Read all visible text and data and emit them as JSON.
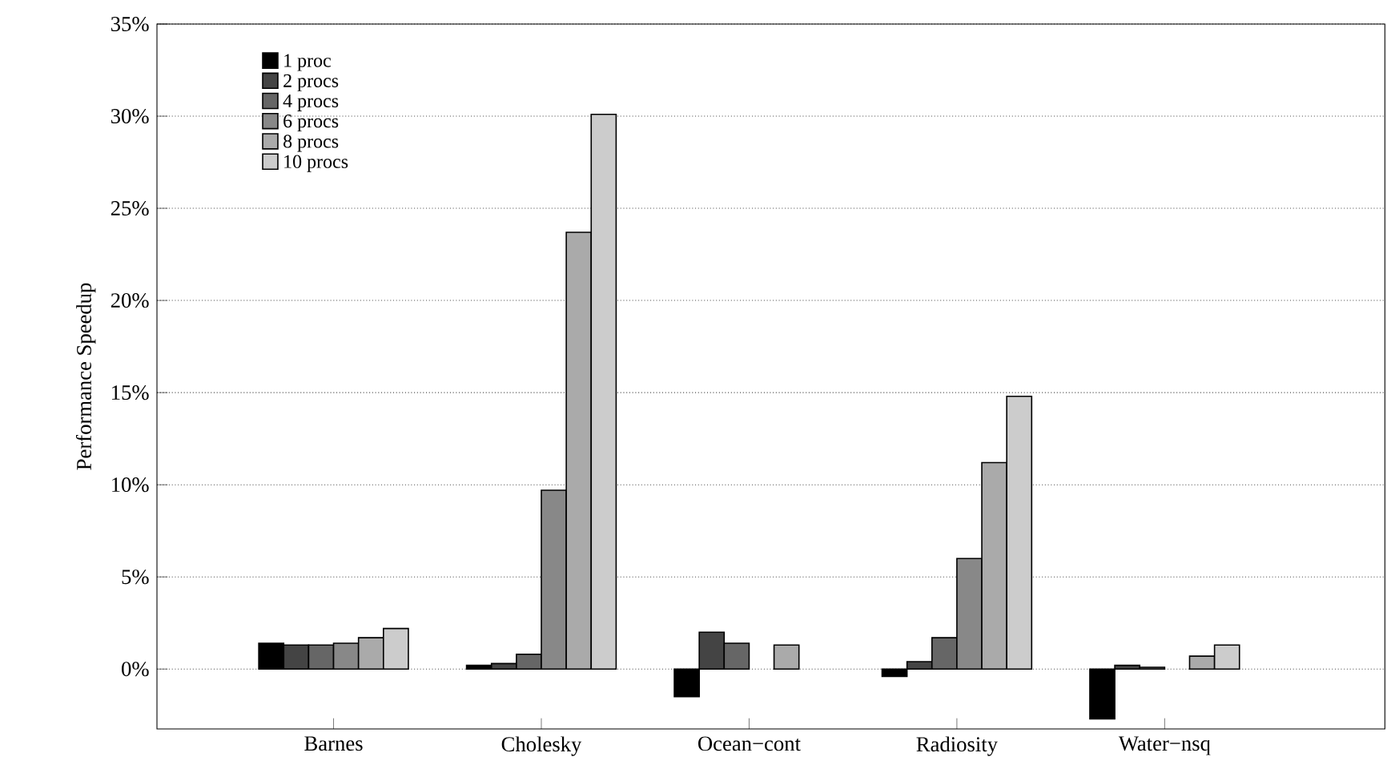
{
  "chart_data": {
    "type": "bar",
    "ylabel": "Performance Speedup",
    "categories": [
      "Barnes",
      "Cholesky",
      "Ocean−cont",
      "Radiosity",
      "Water−nsq"
    ],
    "series": [
      {
        "name": "1 proc",
        "color": "#000000",
        "values": [
          1.4,
          0.2,
          -1.5,
          -0.4,
          -2.7
        ]
      },
      {
        "name": "2 procs",
        "color": "#444444",
        "values": [
          1.3,
          0.3,
          2.0,
          0.4,
          0.2
        ]
      },
      {
        "name": "4 procs",
        "color": "#666666",
        "values": [
          1.3,
          0.8,
          1.4,
          1.7,
          0.1
        ]
      },
      {
        "name": "6 procs",
        "color": "#888888",
        "values": [
          1.4,
          9.7,
          null,
          6.0,
          null
        ]
      },
      {
        "name": "8 procs",
        "color": "#aaaaaa",
        "values": [
          1.7,
          23.7,
          1.3,
          11.2,
          0.7
        ]
      },
      {
        "name": "10 procs",
        "color": "#cccccc",
        "values": [
          2.2,
          30.1,
          null,
          14.8,
          1.3
        ]
      }
    ],
    "ylim": [
      -3.25,
      35
    ],
    "yticks": [
      {
        "value": 0,
        "label": "0%"
      },
      {
        "value": 5,
        "label": "5%"
      },
      {
        "value": 10,
        "label": "10%"
      },
      {
        "value": 15,
        "label": "15%"
      },
      {
        "value": 20,
        "label": "20%"
      },
      {
        "value": 25,
        "label": "25%"
      },
      {
        "value": 30,
        "label": "30%"
      },
      {
        "value": 35,
        "label": "35%"
      }
    ],
    "grid": "y",
    "legend": "top left"
  }
}
